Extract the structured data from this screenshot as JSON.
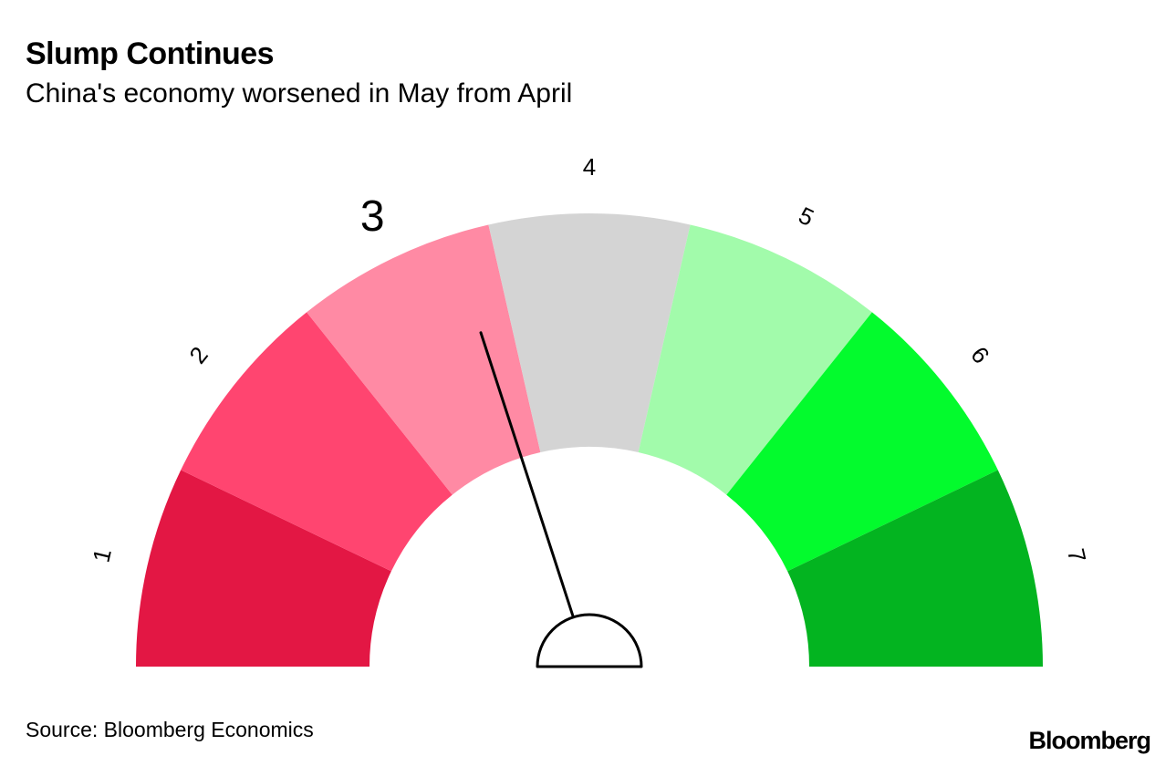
{
  "chart_data": {
    "type": "gauge",
    "title": "Slump Continues",
    "subtitle": "China's economy worsened in May from April",
    "scale": {
      "min": 1,
      "max": 7
    },
    "segments": [
      {
        "label": "1",
        "color": "#e31744"
      },
      {
        "label": "2",
        "color": "#ff4570"
      },
      {
        "label": "3",
        "color": "#ff8aa4"
      },
      {
        "label": "4",
        "color": "#d4d4d4"
      },
      {
        "label": "5",
        "color": "#a2fbab"
      },
      {
        "label": "6",
        "color": "#03fb2d"
      },
      {
        "label": "7",
        "color": "#03b420"
      }
    ],
    "highlighted_label": "3",
    "needle_value": 3.3,
    "source": "Source: Bloomberg Economics",
    "brand": "Bloomberg"
  }
}
